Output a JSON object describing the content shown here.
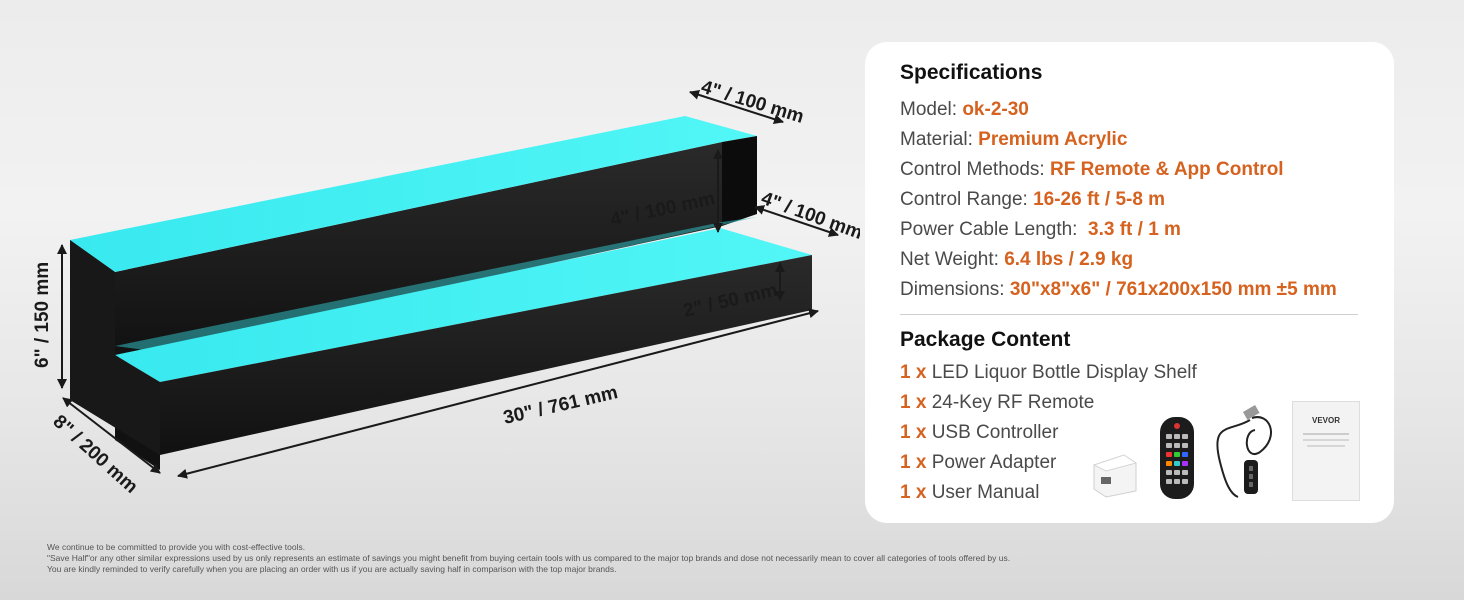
{
  "dimensions": {
    "top_depth": "4\" / 100 mm",
    "step_depth": "4\" / 100 mm",
    "upper_rise": "4\" / 100 mm",
    "lower_rise": "2\" / 50 mm",
    "height": "6\" / 150 mm",
    "depth": "8\" / 200 mm",
    "length": "30\" / 761 mm"
  },
  "specifications": {
    "title": "Specifications",
    "items": [
      {
        "label": "Model: ",
        "value": "ok-2-30"
      },
      {
        "label": "Material: ",
        "value": "Premium Acrylic"
      },
      {
        "label": "Control Methods: ",
        "value": "RF Remote & App Control"
      },
      {
        "label": "Control Range: ",
        "value": "16-26 ft / 5-8 m"
      },
      {
        "label": "Power Cable Length:  ",
        "value": "3.3 ft / 1 m"
      },
      {
        "label": "Net Weight: ",
        "value": "6.4 lbs / 2.9 kg"
      },
      {
        "label": "Dimensions: ",
        "value": "30\"x8\"x6\" / 761x200x150 mm ±5 mm"
      }
    ]
  },
  "package": {
    "title": "Package Content",
    "items": [
      {
        "qty": "1 x",
        "name": " LED Liquor Bottle Display Shelf"
      },
      {
        "qty": "1 x",
        "name": " 24-Key RF Remote"
      },
      {
        "qty": "1 x",
        "name": " USB Controller"
      },
      {
        "qty": "1 x",
        "name": " Power Adapter"
      },
      {
        "qty": "1 x",
        "name": " User Manual"
      }
    ],
    "manual_brand": "VEVOR"
  },
  "footer": {
    "line1": "We continue to be committed to provide you with cost-effective tools.",
    "line2": "\"Save Half\"or any other similar expressions used by us only represents an estimate of savings you might benefit from buying certain tools with us compared to the major top brands and dose not necessarily mean to cover all categories of tools offered by us.",
    "line3": "You are kindly reminded to verify carefully when you are placing an order with us if you are actually saving half in comparison with the top major brands."
  },
  "colors": {
    "accent": "#d5621f",
    "glow": "#3ff0f4",
    "shelf": "#171717"
  }
}
